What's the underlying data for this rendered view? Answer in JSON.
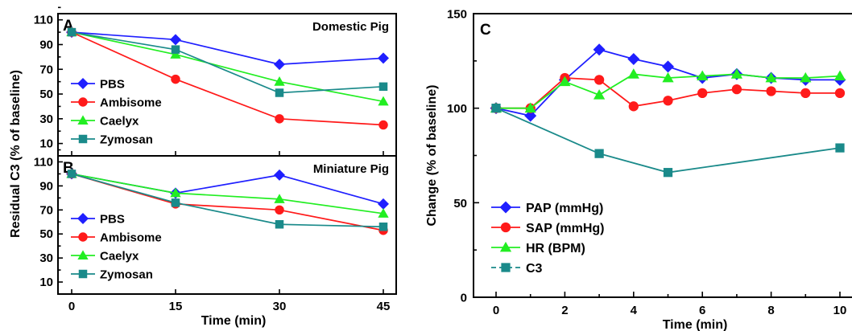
{
  "chart_data": [
    {
      "panel": "A",
      "type": "line",
      "title": "Domestic Pig",
      "x": [
        0,
        15,
        30,
        45
      ],
      "xticks": [
        "0",
        "15",
        "30",
        "45"
      ],
      "ylim": [
        0,
        115
      ],
      "yticks": [
        "10",
        "30",
        "50",
        "70",
        "90",
        "110"
      ],
      "ylabel": "Residual C3 (% of baseline)",
      "series": [
        {
          "name": "PBS",
          "color": "#1f1fff",
          "marker": "diamond",
          "values": [
            100,
            94,
            74,
            79
          ]
        },
        {
          "name": "Ambisome",
          "color": "#ff1a1a",
          "marker": "circle",
          "values": [
            100,
            62,
            30,
            25
          ]
        },
        {
          "name": "Caelyx",
          "color": "#22ee22",
          "marker": "triangle",
          "values": [
            100,
            82,
            60,
            44
          ]
        },
        {
          "name": "Zymosan",
          "color": "#1a8a8a",
          "marker": "square",
          "values": [
            100,
            86,
            51,
            56
          ]
        }
      ]
    },
    {
      "panel": "B",
      "type": "line",
      "title": "Miniature Pig",
      "x": [
        0,
        15,
        30,
        45
      ],
      "xticks": [
        "0",
        "15",
        "30",
        "45"
      ],
      "ylim": [
        0,
        115
      ],
      "yticks": [
        "10",
        "30",
        "50",
        "70",
        "90",
        "110"
      ],
      "xlabel": "Time (min)",
      "series": [
        {
          "name": "PBS",
          "color": "#1f1fff",
          "marker": "diamond",
          "values": [
            100,
            84,
            99,
            75
          ]
        },
        {
          "name": "Ambisome",
          "color": "#ff1a1a",
          "marker": "circle",
          "values": [
            100,
            75,
            70,
            53
          ]
        },
        {
          "name": "Caelyx",
          "color": "#22ee22",
          "marker": "triangle",
          "values": [
            100,
            84,
            79,
            67
          ]
        },
        {
          "name": "Zymosan",
          "color": "#1a8a8a",
          "marker": "square",
          "values": [
            100,
            76,
            58,
            56
          ]
        }
      ]
    },
    {
      "panel": "C",
      "type": "line",
      "x": [
        0,
        1,
        2,
        3,
        4,
        5,
        6,
        7,
        8,
        9,
        10
      ],
      "xlim": [
        -0.7,
        10.3
      ],
      "ylim": [
        0,
        150
      ],
      "xticks": [
        "0",
        "2",
        "4",
        "6",
        "8",
        "10"
      ],
      "yticks": [
        "0",
        "50",
        "100",
        "150"
      ],
      "xlabel": "Time (min)",
      "ylabel": "Change (% of baseline)",
      "series": [
        {
          "name": "PAP (mmHg)",
          "color": "#1f1fff",
          "marker": "diamond",
          "x": [
            0,
            1,
            2,
            3,
            4,
            5,
            6,
            7,
            8,
            9,
            10
          ],
          "values": [
            100,
            96,
            115,
            131,
            126,
            122,
            116,
            118,
            116,
            115,
            115
          ]
        },
        {
          "name": "SAP (mmHg)",
          "color": "#ff1a1a",
          "marker": "circle",
          "x": [
            0,
            1,
            2,
            3,
            4,
            5,
            6,
            7,
            8,
            9,
            10
          ],
          "values": [
            100,
            100,
            116,
            115,
            101,
            104,
            108,
            110,
            109,
            108,
            108
          ]
        },
        {
          "name": "HR (BPM)",
          "color": "#22ee22",
          "marker": "triangle",
          "x": [
            0,
            1,
            2,
            3,
            4,
            5,
            6,
            7,
            8,
            9,
            10
          ],
          "values": [
            100,
            100,
            114,
            107,
            118,
            116,
            117,
            118,
            116,
            116,
            117
          ]
        },
        {
          "name": "C3",
          "color": "#1a8a8a",
          "marker": "square",
          "x": [
            0,
            3,
            5,
            10
          ],
          "values": [
            100,
            76,
            66,
            79
          ]
        }
      ]
    }
  ]
}
